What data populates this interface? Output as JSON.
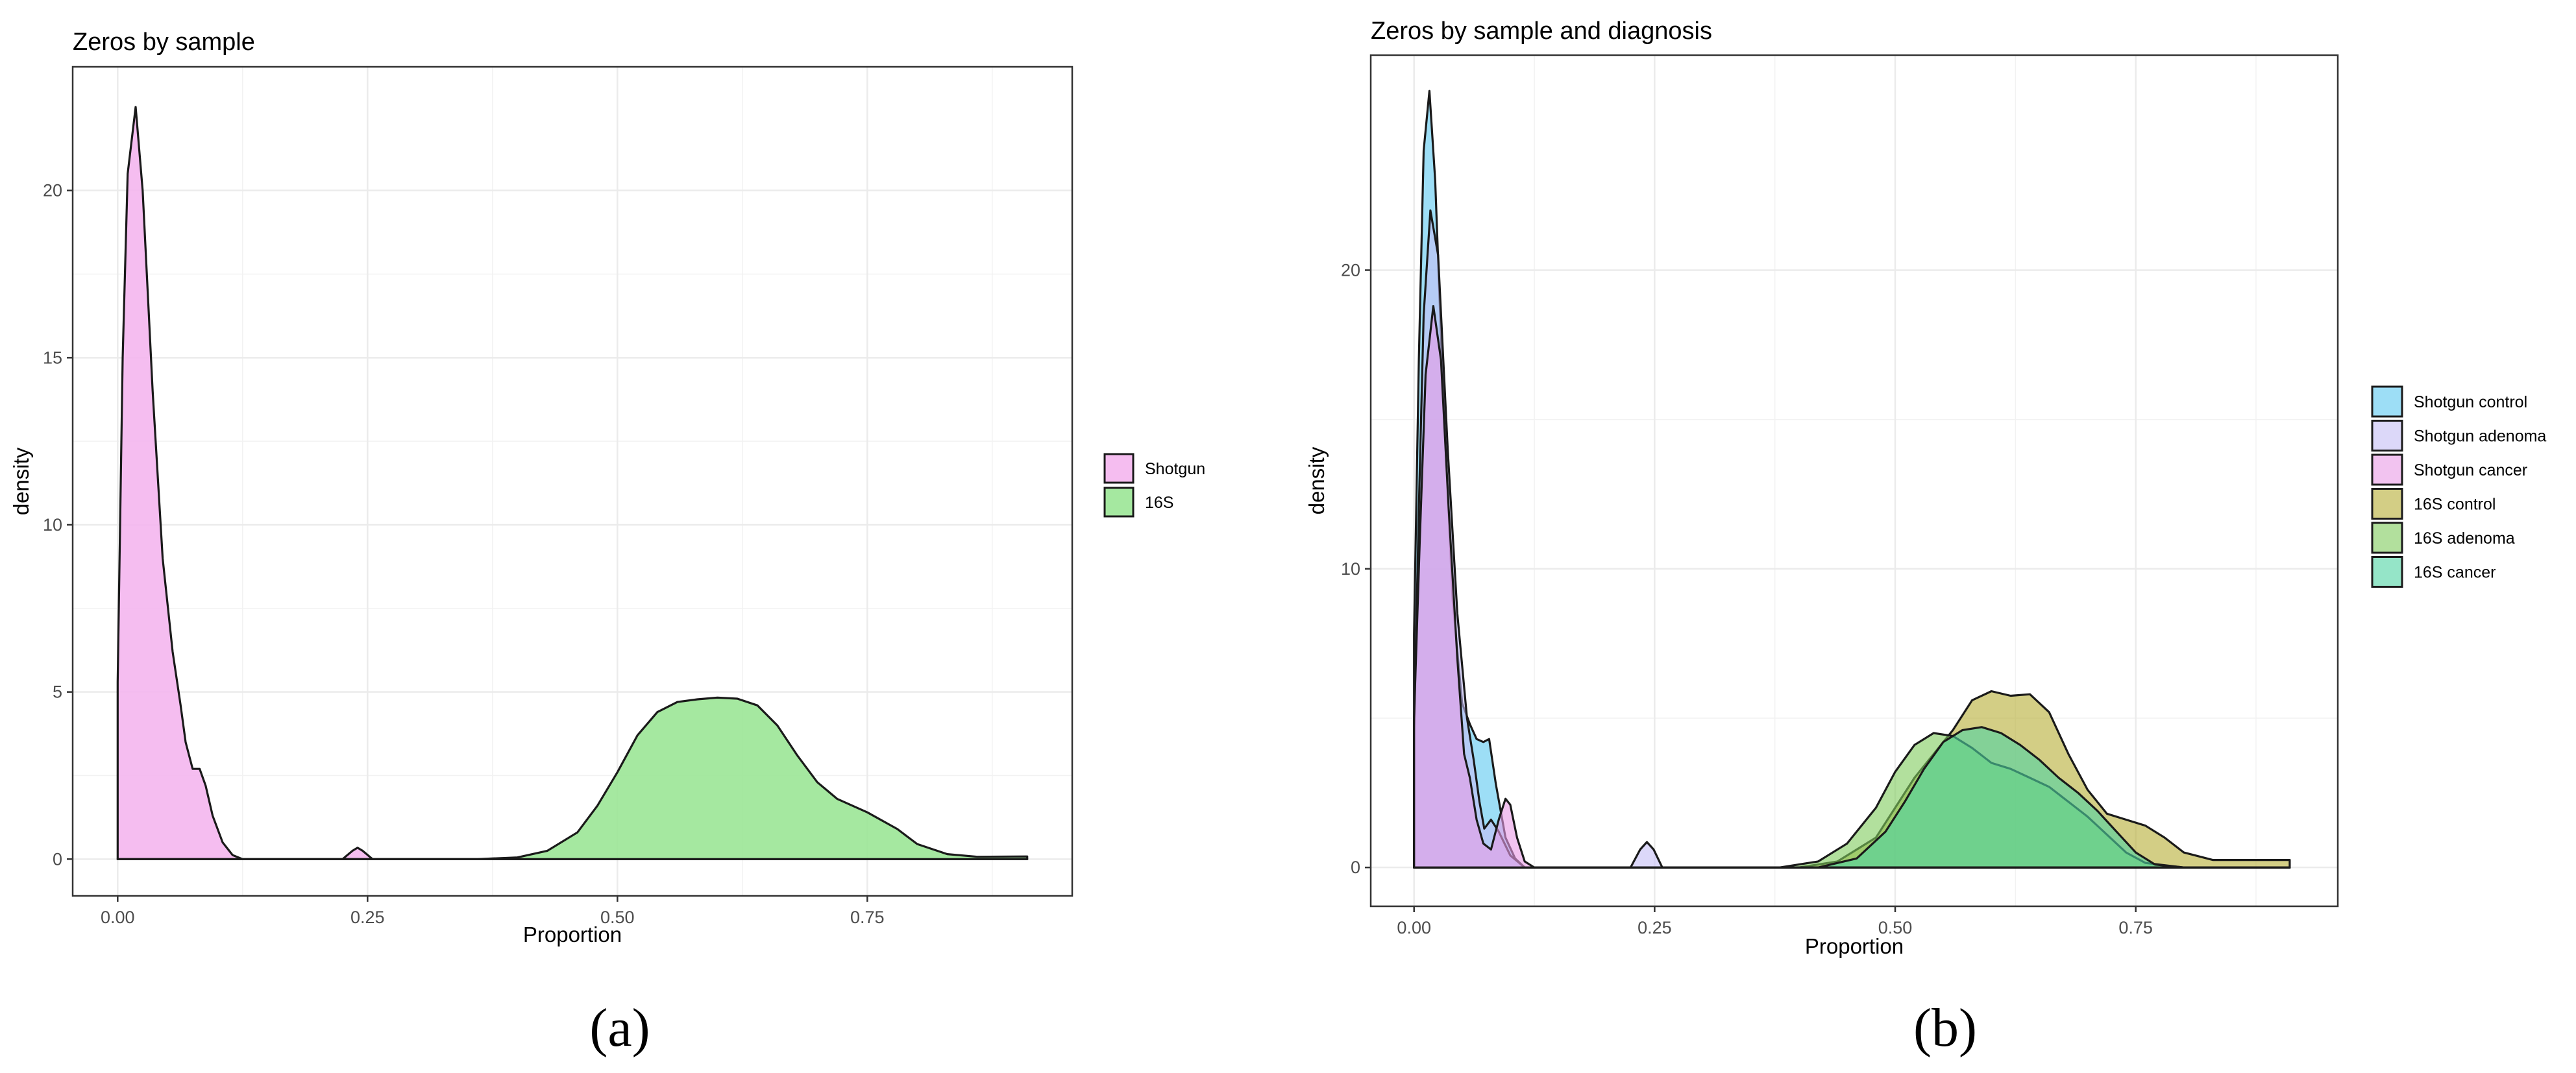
{
  "chart_data": [
    {
      "type": "area",
      "subtype": "density",
      "title": "Zeros by sample",
      "xlabel": "Proportion",
      "ylabel": "density",
      "xlim": [
        -0.045,
        0.955
      ],
      "ylim": [
        -1.1,
        23.7
      ],
      "xticks": [
        0.0,
        0.25,
        0.5,
        0.75
      ],
      "xtick_labels": [
        "0.00",
        "0.25",
        "0.50",
        "0.75"
      ],
      "yticks": [
        0,
        5,
        10,
        15,
        20
      ],
      "ytick_labels": [
        "0",
        "5",
        "10",
        "15",
        "20"
      ],
      "grid": true,
      "legend_position": "right",
      "panel_label": "(a)",
      "series": [
        {
          "name": "Shotgun",
          "color": "#F4B6EE",
          "points": [
            [
              0.0,
              5.3
            ],
            [
              0.005,
              15.0
            ],
            [
              0.01,
              20.5
            ],
            [
              0.018,
              22.5
            ],
            [
              0.025,
              20.0
            ],
            [
              0.035,
              14.0
            ],
            [
              0.045,
              9.0
            ],
            [
              0.055,
              6.2
            ],
            [
              0.063,
              4.6
            ],
            [
              0.068,
              3.5
            ],
            [
              0.075,
              2.7
            ],
            [
              0.082,
              2.7
            ],
            [
              0.088,
              2.2
            ],
            [
              0.095,
              1.3
            ],
            [
              0.105,
              0.5
            ],
            [
              0.115,
              0.12
            ],
            [
              0.125,
              0.0
            ],
            [
              0.225,
              0.0
            ],
            [
              0.235,
              0.25
            ],
            [
              0.24,
              0.34
            ],
            [
              0.245,
              0.25
            ],
            [
              0.255,
              0.0
            ],
            [
              0.91,
              0.0
            ]
          ]
        },
        {
          "name": "16S",
          "color": "#9BE596",
          "points": [
            [
              0.0,
              0.0
            ],
            [
              0.36,
              0.0
            ],
            [
              0.4,
              0.05
            ],
            [
              0.43,
              0.25
            ],
            [
              0.46,
              0.8
            ],
            [
              0.48,
              1.6
            ],
            [
              0.5,
              2.6
            ],
            [
              0.52,
              3.7
            ],
            [
              0.54,
              4.4
            ],
            [
              0.56,
              4.7
            ],
            [
              0.58,
              4.78
            ],
            [
              0.6,
              4.83
            ],
            [
              0.62,
              4.8
            ],
            [
              0.64,
              4.6
            ],
            [
              0.66,
              4.0
            ],
            [
              0.68,
              3.1
            ],
            [
              0.7,
              2.3
            ],
            [
              0.72,
              1.8
            ],
            [
              0.75,
              1.4
            ],
            [
              0.78,
              0.9
            ],
            [
              0.8,
              0.45
            ],
            [
              0.83,
              0.15
            ],
            [
              0.86,
              0.07
            ],
            [
              0.91,
              0.08
            ]
          ]
        }
      ]
    },
    {
      "type": "area",
      "subtype": "density",
      "title": "Zeros by sample and diagnosis",
      "xlabel": "Proportion",
      "ylabel": "density",
      "xlim": [
        -0.045,
        0.96
      ],
      "ylim": [
        -1.3,
        27.2
      ],
      "xticks": [
        0.0,
        0.25,
        0.5,
        0.75
      ],
      "xtick_labels": [
        "0.00",
        "0.25",
        "0.50",
        "0.75"
      ],
      "yticks": [
        0,
        10,
        20
      ],
      "ytick_labels": [
        "0",
        "10",
        "20"
      ],
      "grid": true,
      "legend_position": "right",
      "panel_label": "(b)",
      "series": [
        {
          "name": "16S control",
          "color": "#B5AE33",
          "points": [
            [
              0.0,
              0.0
            ],
            [
              0.4,
              0.0
            ],
            [
              0.44,
              0.2
            ],
            [
              0.48,
              1.0
            ],
            [
              0.5,
              2.0
            ],
            [
              0.52,
              3.0
            ],
            [
              0.54,
              3.8
            ],
            [
              0.56,
              4.6
            ],
            [
              0.58,
              5.6
            ],
            [
              0.6,
              5.9
            ],
            [
              0.62,
              5.75
            ],
            [
              0.64,
              5.8
            ],
            [
              0.66,
              5.2
            ],
            [
              0.68,
              3.8
            ],
            [
              0.7,
              2.6
            ],
            [
              0.72,
              1.8
            ],
            [
              0.74,
              1.6
            ],
            [
              0.76,
              1.4
            ],
            [
              0.78,
              1.0
            ],
            [
              0.8,
              0.5
            ],
            [
              0.83,
              0.25
            ],
            [
              0.86,
              0.25
            ],
            [
              0.91,
              0.25
            ]
          ]
        },
        {
          "name": "16S adenoma",
          "color": "#7FCB5B",
          "points": [
            [
              0.0,
              0.0
            ],
            [
              0.38,
              0.0
            ],
            [
              0.42,
              0.2
            ],
            [
              0.45,
              0.8
            ],
            [
              0.48,
              2.0
            ],
            [
              0.5,
              3.2
            ],
            [
              0.52,
              4.1
            ],
            [
              0.54,
              4.5
            ],
            [
              0.56,
              4.4
            ],
            [
              0.58,
              4.0
            ],
            [
              0.6,
              3.5
            ],
            [
              0.62,
              3.3
            ],
            [
              0.64,
              3.0
            ],
            [
              0.66,
              2.7
            ],
            [
              0.68,
              2.2
            ],
            [
              0.7,
              1.7
            ],
            [
              0.72,
              1.1
            ],
            [
              0.74,
              0.5
            ],
            [
              0.76,
              0.15
            ],
            [
              0.8,
              0.0
            ],
            [
              0.91,
              0.0
            ]
          ]
        },
        {
          "name": "16S cancer",
          "color": "#4FD3A4",
          "points": [
            [
              0.0,
              0.0
            ],
            [
              0.42,
              0.0
            ],
            [
              0.46,
              0.3
            ],
            [
              0.49,
              1.2
            ],
            [
              0.51,
              2.2
            ],
            [
              0.53,
              3.3
            ],
            [
              0.55,
              4.2
            ],
            [
              0.57,
              4.6
            ],
            [
              0.59,
              4.7
            ],
            [
              0.61,
              4.5
            ],
            [
              0.63,
              4.1
            ],
            [
              0.65,
              3.6
            ],
            [
              0.67,
              3.0
            ],
            [
              0.69,
              2.5
            ],
            [
              0.71,
              1.9
            ],
            [
              0.73,
              1.2
            ],
            [
              0.75,
              0.5
            ],
            [
              0.77,
              0.1
            ],
            [
              0.8,
              0.0
            ],
            [
              0.91,
              0.0
            ]
          ]
        },
        {
          "name": "Shotgun control",
          "color": "#5BC8F0",
          "points": [
            [
              0.0,
              7.8
            ],
            [
              0.005,
              17.0
            ],
            [
              0.01,
              24.0
            ],
            [
              0.016,
              26.0
            ],
            [
              0.022,
              23.0
            ],
            [
              0.03,
              16.0
            ],
            [
              0.04,
              9.0
            ],
            [
              0.05,
              5.5
            ],
            [
              0.058,
              4.8
            ],
            [
              0.065,
              4.3
            ],
            [
              0.072,
              4.2
            ],
            [
              0.078,
              4.3
            ],
            [
              0.085,
              2.8
            ],
            [
              0.095,
              1.0
            ],
            [
              0.105,
              0.3
            ],
            [
              0.115,
              0.0
            ],
            [
              0.91,
              0.0
            ]
          ]
        },
        {
          "name": "Shotgun adenoma",
          "color": "#C4BEF5",
          "points": [
            [
              0.0,
              4.5
            ],
            [
              0.005,
              12.0
            ],
            [
              0.01,
              18.5
            ],
            [
              0.017,
              22.0
            ],
            [
              0.025,
              20.5
            ],
            [
              0.035,
              14.0
            ],
            [
              0.045,
              8.5
            ],
            [
              0.055,
              5.0
            ],
            [
              0.062,
              3.6
            ],
            [
              0.068,
              2.2
            ],
            [
              0.073,
              1.3
            ],
            [
              0.08,
              1.6
            ],
            [
              0.088,
              1.2
            ],
            [
              0.1,
              0.4
            ],
            [
              0.115,
              0.0
            ],
            [
              0.225,
              0.0
            ],
            [
              0.235,
              0.6
            ],
            [
              0.242,
              0.85
            ],
            [
              0.249,
              0.6
            ],
            [
              0.258,
              0.0
            ],
            [
              0.91,
              0.0
            ]
          ]
        },
        {
          "name": "Shotgun cancer",
          "color": "#E99BE6",
          "points": [
            [
              0.0,
              5.0
            ],
            [
              0.006,
              11.0
            ],
            [
              0.012,
              16.5
            ],
            [
              0.02,
              18.8
            ],
            [
              0.028,
              17.0
            ],
            [
              0.036,
              12.0
            ],
            [
              0.045,
              7.0
            ],
            [
              0.052,
              3.8
            ],
            [
              0.058,
              3.0
            ],
            [
              0.065,
              1.6
            ],
            [
              0.072,
              0.8
            ],
            [
              0.08,
              0.6
            ],
            [
              0.088,
              1.6
            ],
            [
              0.095,
              2.3
            ],
            [
              0.1,
              2.1
            ],
            [
              0.107,
              1.0
            ],
            [
              0.115,
              0.2
            ],
            [
              0.125,
              0.0
            ],
            [
              0.91,
              0.0
            ]
          ]
        }
      ],
      "legend_order": [
        "Shotgun control",
        "Shotgun adenoma",
        "Shotgun cancer",
        "16S control",
        "16S adenoma",
        "16S cancer"
      ]
    }
  ]
}
